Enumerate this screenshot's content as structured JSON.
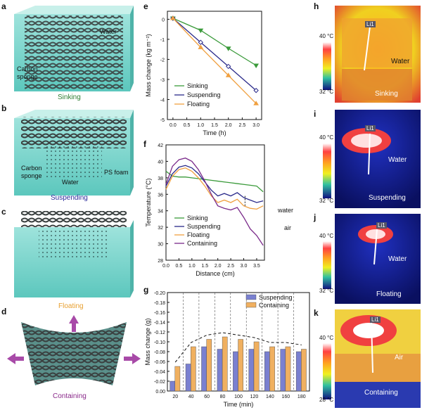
{
  "figure": {
    "panel_a": {
      "letter": "a",
      "water": "Water",
      "carbon": "Carbon\nsponge",
      "caption": "Sinking"
    },
    "panel_b": {
      "letter": "b",
      "carbon": "Carbon\nsponge",
      "water": "Water",
      "ps": "PS foam",
      "caption": "Suspending"
    },
    "panel_c": {
      "letter": "c",
      "caption": "Floating"
    },
    "panel_d": {
      "letter": "d",
      "caption": "Containing"
    },
    "panel_e": {
      "letter": "e"
    },
    "panel_f": {
      "letter": "f",
      "water_note": "water",
      "air_note": "air"
    },
    "panel_g": {
      "letter": "g"
    },
    "panel_h": {
      "letter": "h",
      "scale_top": "40 °C",
      "scale_bottom": "32 °C",
      "li": "Li1",
      "label": "Water",
      "caption": "Sinking"
    },
    "panel_i": {
      "letter": "i",
      "scale_top": "40 °C",
      "scale_bottom": "32 °C",
      "li": "Li1",
      "label": "Water",
      "caption": "Suspending"
    },
    "panel_j": {
      "letter": "j",
      "scale_top": "40 °C",
      "scale_bottom": "32 °C",
      "li": "Li1",
      "label": "Water",
      "caption": "Floating"
    },
    "panel_k": {
      "letter": "k",
      "scale_top": "40 °C",
      "scale_bottom": "28 °C",
      "li": "Li1",
      "label": "Air",
      "caption": "Containing"
    }
  },
  "colors": {
    "sinking": "#3a9a3a",
    "suspending": "#2a2a8a",
    "floating": "#f0a040",
    "containing": "#7a2a8a",
    "caption_a": "#2e7d32",
    "caption_b": "#2a2a9a",
    "caption_c": "#e8a030",
    "caption_d": "#8a2a8a"
  },
  "chart_data": [
    {
      "panel": "e",
      "type": "line",
      "x": [
        0,
        1,
        2,
        3
      ],
      "xlabel": "Time (h)",
      "ylabel": "Mass change (kg m⁻²)",
      "xlim": [
        -0.2,
        3.2
      ],
      "ylim": [
        -5,
        0.4
      ],
      "xticks": [
        "0.0",
        "0.5",
        "1.0",
        "1.5",
        "2.0",
        "2.5",
        "3.0"
      ],
      "yticks": [
        "0",
        "-1",
        "-2",
        "-3",
        "-4",
        "-5"
      ],
      "legend_position": "bottom-left",
      "series": [
        {
          "name": "Sinking",
          "values": [
            0.05,
            -0.55,
            -1.45,
            -2.3
          ]
        },
        {
          "name": "Suspending",
          "values": [
            0.05,
            -1.15,
            -2.35,
            -3.55
          ]
        },
        {
          "name": "Floating",
          "values": [
            0.05,
            -1.4,
            -2.8,
            -4.2
          ]
        }
      ]
    },
    {
      "panel": "f",
      "type": "line",
      "x": [
        0,
        0.25,
        0.5,
        0.75,
        1,
        1.25,
        1.5,
        1.75,
        2,
        2.25,
        2.5,
        2.75,
        3,
        3.25,
        3.5,
        3.75
      ],
      "xlabel": "Distance (cm)",
      "ylabel": "Temperature (°C)",
      "xlim": [
        0,
        3.8
      ],
      "ylim": [
        28,
        42
      ],
      "xticks": [
        "0.0",
        "0.5",
        "1.0",
        "1.5",
        "2.0",
        "2.5",
        "3.0",
        "3.5"
      ],
      "yticks": [
        "28",
        "30",
        "32",
        "34",
        "36",
        "38",
        "40",
        "42"
      ],
      "legend_position": "bottom-left",
      "series": [
        {
          "name": "Sinking",
          "values": [
            38.8,
            38.2,
            38.1,
            38.1,
            38,
            37.9,
            37.8,
            37.7,
            37.6,
            37.5,
            37.4,
            37.3,
            37.2,
            37.1,
            37,
            36.3
          ]
        },
        {
          "name": "Suspending",
          "values": [
            37,
            38.5,
            39.3,
            39.5,
            39.2,
            38.5,
            37.5,
            36.5,
            35.8,
            36.1,
            35.8,
            36.2,
            35.6,
            35.3,
            35,
            35.2
          ]
        },
        {
          "name": "Floating",
          "values": [
            36.6,
            38.2,
            39,
            39.2,
            38.8,
            38,
            37,
            35.8,
            35,
            35.3,
            35,
            35.4,
            34.6,
            34.3,
            34.2,
            34.6
          ]
        },
        {
          "name": "Containing",
          "values": [
            37.2,
            39.4,
            40.2,
            40.4,
            40,
            39,
            37.6,
            36,
            34.6,
            34.3,
            34.1,
            34.4,
            33.2,
            31.8,
            31,
            29.8
          ]
        }
      ]
    },
    {
      "panel": "g",
      "type": "bar",
      "categories": [
        "20",
        "40",
        "60",
        "80",
        "100",
        "120",
        "140",
        "160",
        "180"
      ],
      "xlabel": "Time (min)",
      "ylabel": "Mass change (g)",
      "ylim": [
        0,
        -0.2
      ],
      "yticks": [
        "-0.20",
        "-0.18",
        "-0.16",
        "-0.14",
        "-0.12",
        "-0.10",
        "-0.08",
        "-0.06",
        "-0.04",
        "-0.02",
        "0.00"
      ],
      "legend_position": "top-right",
      "series": [
        {
          "name": "Suspending",
          "values": [
            -0.02,
            -0.055,
            -0.09,
            -0.085,
            -0.08,
            -0.085,
            -0.08,
            -0.085,
            -0.08
          ]
        },
        {
          "name": "Containing",
          "values": [
            -0.05,
            -0.09,
            -0.105,
            -0.11,
            -0.105,
            -0.1,
            -0.09,
            -0.09,
            -0.085
          ]
        }
      ]
    }
  ]
}
